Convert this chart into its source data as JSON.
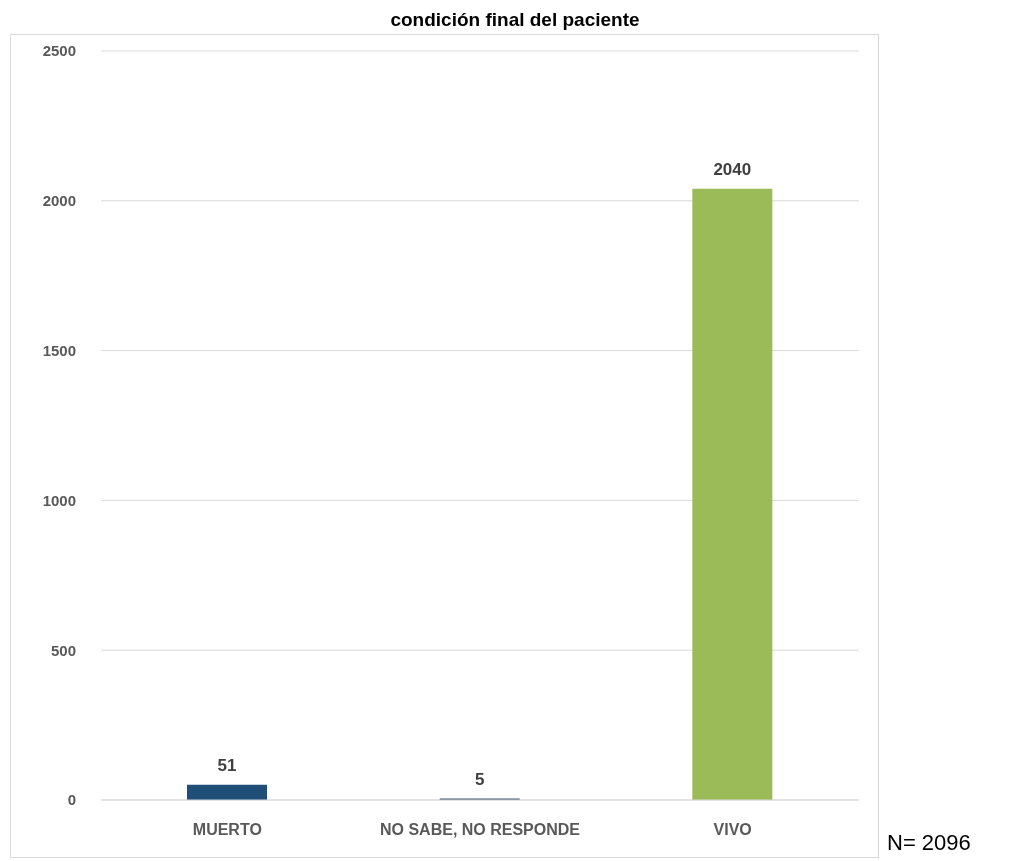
{
  "chart_data": {
    "type": "bar",
    "title": "condición final del paciente",
    "categories": [
      "MUERTO",
      "NO SABE, NO RESPONDE",
      "VIVO"
    ],
    "values": [
      51,
      5,
      2040
    ],
    "colors": [
      "#1f4e79",
      "#44546a",
      "#9bbb59"
    ],
    "ylim": [
      0,
      2500
    ],
    "yticks": [
      0,
      500,
      1000,
      1500,
      2000,
      2500
    ],
    "grid": "y",
    "data_labels": true,
    "annotations": [
      "N= 2096"
    ]
  }
}
